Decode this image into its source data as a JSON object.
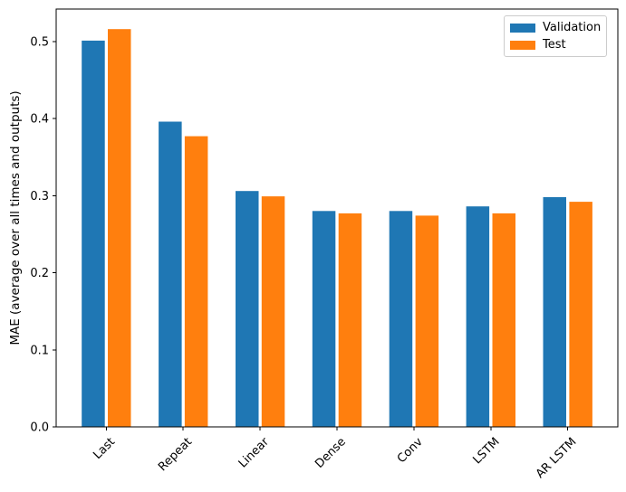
{
  "chart_data": {
    "type": "bar",
    "title": "",
    "xlabel": "",
    "ylabel": "MAE (average over all times and outputs)",
    "categories": [
      "Last",
      "Repeat",
      "Linear",
      "Dense",
      "Conv",
      "LSTM",
      "AR LSTM"
    ],
    "series": [
      {
        "name": "Validation",
        "color": "#1f77b4",
        "values": [
          0.501,
          0.396,
          0.306,
          0.28,
          0.28,
          0.286,
          0.298
        ]
      },
      {
        "name": "Test",
        "color": "#ff7f0e",
        "values": [
          0.516,
          0.377,
          0.299,
          0.277,
          0.274,
          0.277,
          0.292
        ]
      }
    ],
    "ylim": [
      0,
      0.542
    ],
    "yticks": [
      0.0,
      0.1,
      0.2,
      0.3,
      0.4,
      0.5
    ],
    "ytick_labels": [
      "0.0",
      "0.1",
      "0.2",
      "0.3",
      "0.4",
      "0.5"
    ],
    "bar_width": 0.3,
    "bar_offset": 0.17,
    "x_tick_rotation_deg": 45,
    "legend_position": "upper right",
    "grid": false,
    "spine_color": "#000000",
    "background_color": "#ffffff"
  }
}
